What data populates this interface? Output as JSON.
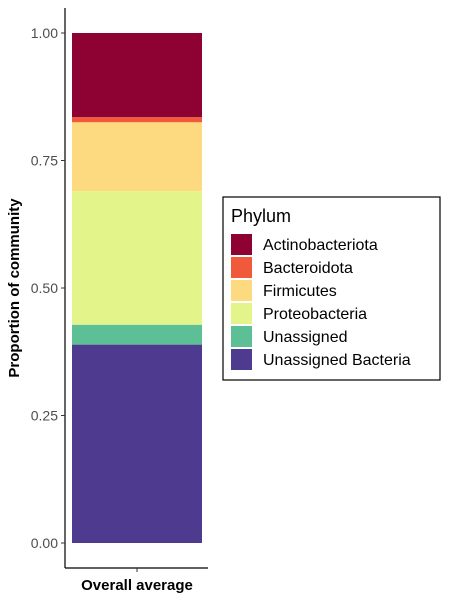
{
  "chart_data": {
    "type": "bar",
    "stacked": true,
    "categories": [
      "Overall average"
    ],
    "xlabel": "",
    "ylabel": "Proportion of community",
    "ylim": [
      0,
      1
    ],
    "yticks": [
      "0.00",
      "0.25",
      "0.50",
      "0.75",
      "1.00"
    ],
    "grid": false,
    "legend": {
      "title": "Phylum",
      "placement": "right"
    },
    "series": [
      {
        "name": "Actinobacteriota",
        "color": "#8E0133",
        "values": [
          0.165
        ]
      },
      {
        "name": "Bacteroidota",
        "color": "#F05A3B",
        "values": [
          0.01
        ]
      },
      {
        "name": "Firmicutes",
        "color": "#FDD97F",
        "values": [
          0.135
        ]
      },
      {
        "name": "Proteobacteria",
        "color": "#E3F58A",
        "values": [
          0.262
        ]
      },
      {
        "name": "Unassigned",
        "color": "#5CBF96",
        "values": [
          0.039
        ]
      },
      {
        "name": "Unassigned Bacteria",
        "color": "#4E3A8F",
        "values": [
          0.389
        ]
      }
    ]
  }
}
